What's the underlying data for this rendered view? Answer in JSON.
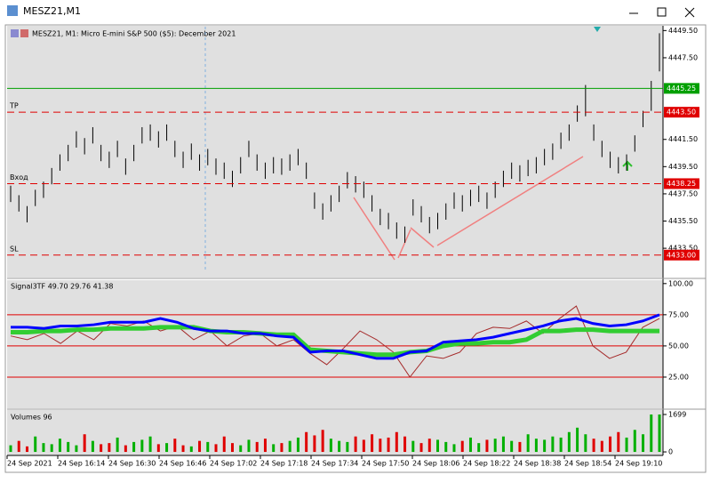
{
  "window": {
    "title": "MESZ21,M1"
  },
  "chart": {
    "header": "MESZ21, M1:  Micro E-mini S&P 500 ($5): December 2021",
    "ylim": [
      4431.35,
      4449.85
    ],
    "yticks": [
      {
        "value": 4449.5,
        "label": "4449.50"
      },
      {
        "value": 4447.5,
        "label": "4447.50"
      },
      {
        "value": 4441.5,
        "label": "4441.50"
      },
      {
        "value": 4439.5,
        "label": "4439.50"
      },
      {
        "value": 4437.5,
        "label": "4437.50"
      },
      {
        "value": 4435.5,
        "label": "4435.50"
      },
      {
        "value": 4433.5,
        "label": "4433.50"
      }
    ],
    "levels": [
      {
        "value": 4445.25,
        "value_label": "4445.25",
        "color": "#00a000",
        "style": "solid"
      },
      {
        "name": "TP",
        "value": 4443.5,
        "value_label": "4443.50",
        "color": "#e00000",
        "style": "dashed"
      },
      {
        "name": "Вход",
        "value": 4438.25,
        "value_label": "4438.25",
        "color": "#e00000",
        "style": "dashed"
      },
      {
        "name": "SL",
        "value": 4433,
        "value_label": "4433.00",
        "color": "#e00000",
        "style": "dashed"
      }
    ],
    "high": [
      4438.1,
      4437.4,
      4436.6,
      4437.8,
      4438.4,
      4439.4,
      4440.4,
      4441.1,
      4442.1,
      4441.6,
      4442.4,
      4441.1,
      4440.6,
      4441.4,
      4440.1,
      4441.1,
      4442.4,
      4442.6,
      4442.1,
      4442.6,
      4441.4,
      4440.6,
      4441.2,
      4440.4,
      4440.8,
      4440.1,
      4439.8,
      4439.2,
      4440.2,
      4441.4,
      4440.4,
      4439.8,
      4440.2,
      4440.1,
      4440.4,
      4440.8,
      4439.8,
      4437.6,
      4436.8,
      4437.4,
      4438.1,
      4439.1,
      4438.8,
      4438.4,
      4437.4,
      4436.4,
      4436.1,
      4435.4,
      4435.1,
      4437.1,
      4436.6,
      4435.8,
      4436.1,
      4436.8,
      4437.6,
      4437.4,
      4437.8,
      4438.1,
      4437.6,
      4438.4,
      4439.2,
      4439.8,
      4439.6,
      4440,
      4440.2,
      4440.8,
      4441.2,
      4442,
      4442.6,
      4444,
      4445.5,
      4442.6,
      4441.4,
      4440.6,
      4440.2,
      4440.4,
      4441.8,
      4443.6,
      4445.8,
      4449.3
    ],
    "low": [
      4436.9,
      4436.2,
      4435.4,
      4436.6,
      4437.2,
      4438.2,
      4439.2,
      4439.9,
      4440.9,
      4440.4,
      4441.2,
      4439.9,
      4439.4,
      4440.2,
      4438.9,
      4439.9,
      4441.2,
      4441.4,
      4440.9,
      4441.4,
      4440.2,
      4439.4,
      4440,
      4439.2,
      4439.6,
      4438.9,
      4438.6,
      4438,
      4439,
      4440.2,
      4439.2,
      4438.6,
      4439,
      4438.9,
      4439.2,
      4439.6,
      4438.6,
      4436.4,
      4435.6,
      4436.2,
      4436.9,
      4437.9,
      4437.6,
      4437.2,
      4436.2,
      4435.2,
      4434.9,
      4434.2,
      4433.9,
      4435.9,
      4435.4,
      4434.6,
      4434.9,
      4435.6,
      4436.4,
      4436.2,
      4436.6,
      4436.9,
      4436.4,
      4437.2,
      4438,
      4438.6,
      4438.4,
      4438.8,
      4439,
      4439.6,
      4440,
      4440.8,
      4441.4,
      4442.8,
      4443.2,
      4441.4,
      4440.2,
      4439.4,
      4439,
      4439.2,
      4440.6,
      4442.4,
      4443.6,
      4446.5
    ],
    "bar_color": "#000000"
  },
  "indicator": {
    "label": "Signal3TF 49.70 29.76 41.38",
    "ylim": [
      0,
      102
    ],
    "yticks": [
      {
        "value": 100,
        "label": "100.00"
      },
      {
        "value": 75,
        "label": "75.00"
      },
      {
        "value": 50,
        "label": "50.00"
      },
      {
        "value": 25,
        "label": "25.00"
      }
    ],
    "levels": [
      75,
      50,
      25
    ],
    "level_color": "#e00000",
    "series": [
      {
        "color": "#a52a2a",
        "width": 1,
        "values": [
          58,
          55,
          60,
          52,
          62,
          55,
          68,
          66,
          70,
          62,
          66,
          55,
          62,
          50,
          58,
          60,
          50,
          55,
          44,
          35,
          48,
          62,
          55,
          45,
          25,
          42,
          40,
          45,
          60,
          65,
          64,
          70,
          60,
          72,
          82,
          50,
          40,
          45,
          65,
          72
        ]
      },
      {
        "color": "#32cd32",
        "width": 5,
        "values": [
          61,
          61,
          62,
          62,
          63,
          63,
          64,
          64,
          64,
          65,
          65,
          65,
          62,
          61,
          61,
          60,
          59,
          59,
          47,
          46,
          45,
          44,
          43,
          43,
          45,
          46,
          50,
          52,
          52,
          53,
          53,
          55,
          62,
          62,
          63,
          63,
          62,
          62,
          62,
          62
        ]
      },
      {
        "color": "#0000ff",
        "width": 3,
        "values": [
          65,
          65,
          64,
          66,
          66,
          67,
          69,
          69,
          69,
          72,
          69,
          64,
          62,
          62,
          60,
          60,
          58,
          57,
          45,
          46,
          46,
          43,
          40,
          40,
          45,
          46,
          53,
          54,
          55,
          57,
          60,
          63,
          66,
          70,
          72,
          68,
          66,
          67,
          70,
          75
        ]
      }
    ]
  },
  "volumes": {
    "label": "Volumes 96",
    "ylim": [
      -160,
      1900
    ],
    "yticks": [
      1699,
      0
    ],
    "up_color": "#00b000",
    "down_color": "#e00000",
    "values": [
      300,
      500,
      250,
      700,
      400,
      350,
      600,
      450,
      300,
      800,
      500,
      350,
      400,
      650,
      300,
      450,
      550,
      700,
      350,
      400,
      600,
      300,
      250,
      500,
      450,
      350,
      700,
      400,
      300,
      550,
      450,
      600,
      350,
      400,
      500,
      650,
      900,
      750,
      1000,
      600,
      500,
      450,
      700,
      550,
      800,
      600,
      650,
      900,
      700,
      500,
      400,
      600,
      550,
      450,
      350,
      500,
      650,
      400,
      550,
      600,
      700,
      500,
      450,
      800,
      600,
      550,
      700,
      650,
      900,
      1100,
      800,
      600,
      500,
      700,
      900,
      650,
      1000,
      800,
      1699,
      1699
    ]
  },
  "time_labels": [
    "24 Sep 2021",
    "24 Sep 16:14",
    "24 Sep 16:30",
    "24 Sep 16:46",
    "24 Sep 17:02",
    "24 Sep 17:18",
    "24 Sep 17:34",
    "24 Sep 17:50",
    "24 Sep 18:06",
    "24 Sep 18:22",
    "24 Sep 18:38",
    "24 Sep 18:54",
    "24 Sep 19:10"
  ]
}
